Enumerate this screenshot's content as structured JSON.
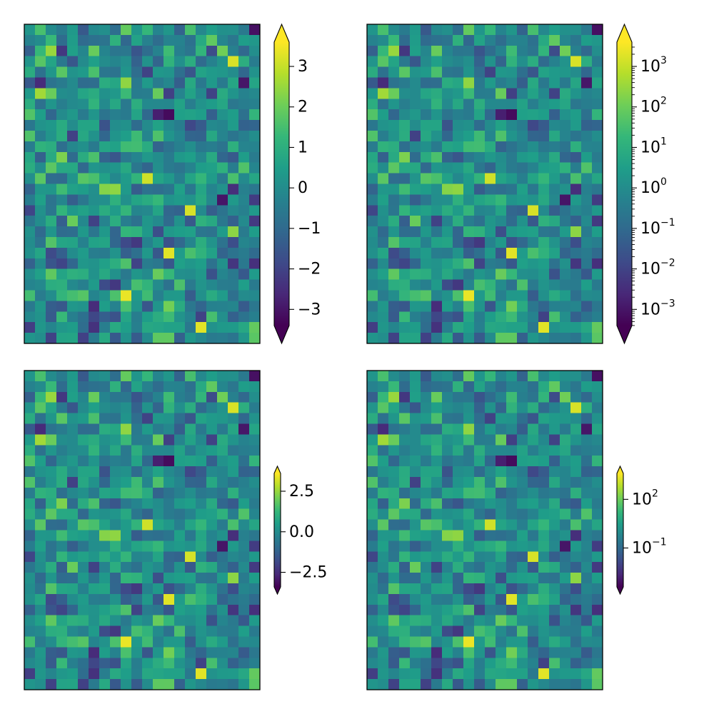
{
  "chart_data": [
    {
      "type": "heatmap",
      "panel": "top-left",
      "grid": {
        "rows": 30,
        "cols": 22
      },
      "colormap": "viridis",
      "colorbar": {
        "scale": "linear",
        "extend": "both",
        "size": "full",
        "range": [
          -3.4,
          3.6
        ],
        "ticks": [
          3,
          2,
          1,
          0,
          -1,
          -2,
          -3
        ],
        "tick_labels": [
          "3",
          "2",
          "1",
          "0",
          "−1",
          "−2",
          "−3"
        ]
      }
    },
    {
      "type": "heatmap",
      "panel": "top-right",
      "grid": {
        "rows": 30,
        "cols": 22
      },
      "colormap": "viridis",
      "colorbar": {
        "scale": "log",
        "extend": "both",
        "size": "full",
        "range": [
          -3.4,
          3.6
        ],
        "ticks": [
          3,
          2,
          1,
          0,
          -1,
          -2,
          -3
        ],
        "tick_labels": [
          "10^3",
          "10^2",
          "10^1",
          "10^0",
          "10^-1",
          "10^-2",
          "10^-3"
        ]
      }
    },
    {
      "type": "heatmap",
      "panel": "bottom-left",
      "grid": {
        "rows": 30,
        "cols": 22
      },
      "colormap": "viridis",
      "colorbar": {
        "scale": "linear",
        "extend": "both",
        "size": "shrunk",
        "range": [
          -3.4,
          3.6
        ],
        "ticks": [
          2.5,
          0.0,
          -2.5
        ],
        "tick_labels": [
          "2.5",
          "0.0",
          "−2.5"
        ]
      }
    },
    {
      "type": "heatmap",
      "panel": "bottom-right",
      "grid": {
        "rows": 30,
        "cols": 22
      },
      "colormap": "viridis",
      "colorbar": {
        "scale": "log",
        "extend": "both",
        "size": "shrunk",
        "range": [
          -3.4,
          3.6
        ],
        "ticks": [
          2,
          -1
        ],
        "tick_labels": [
          "10^2",
          "10^-1"
        ]
      }
    }
  ],
  "colors": {
    "viridis": [
      "#440154",
      "#482878",
      "#3e4a89",
      "#31688e",
      "#26828e",
      "#1f9e89",
      "#35b779",
      "#6ece58",
      "#b5de2b",
      "#fde725"
    ]
  }
}
